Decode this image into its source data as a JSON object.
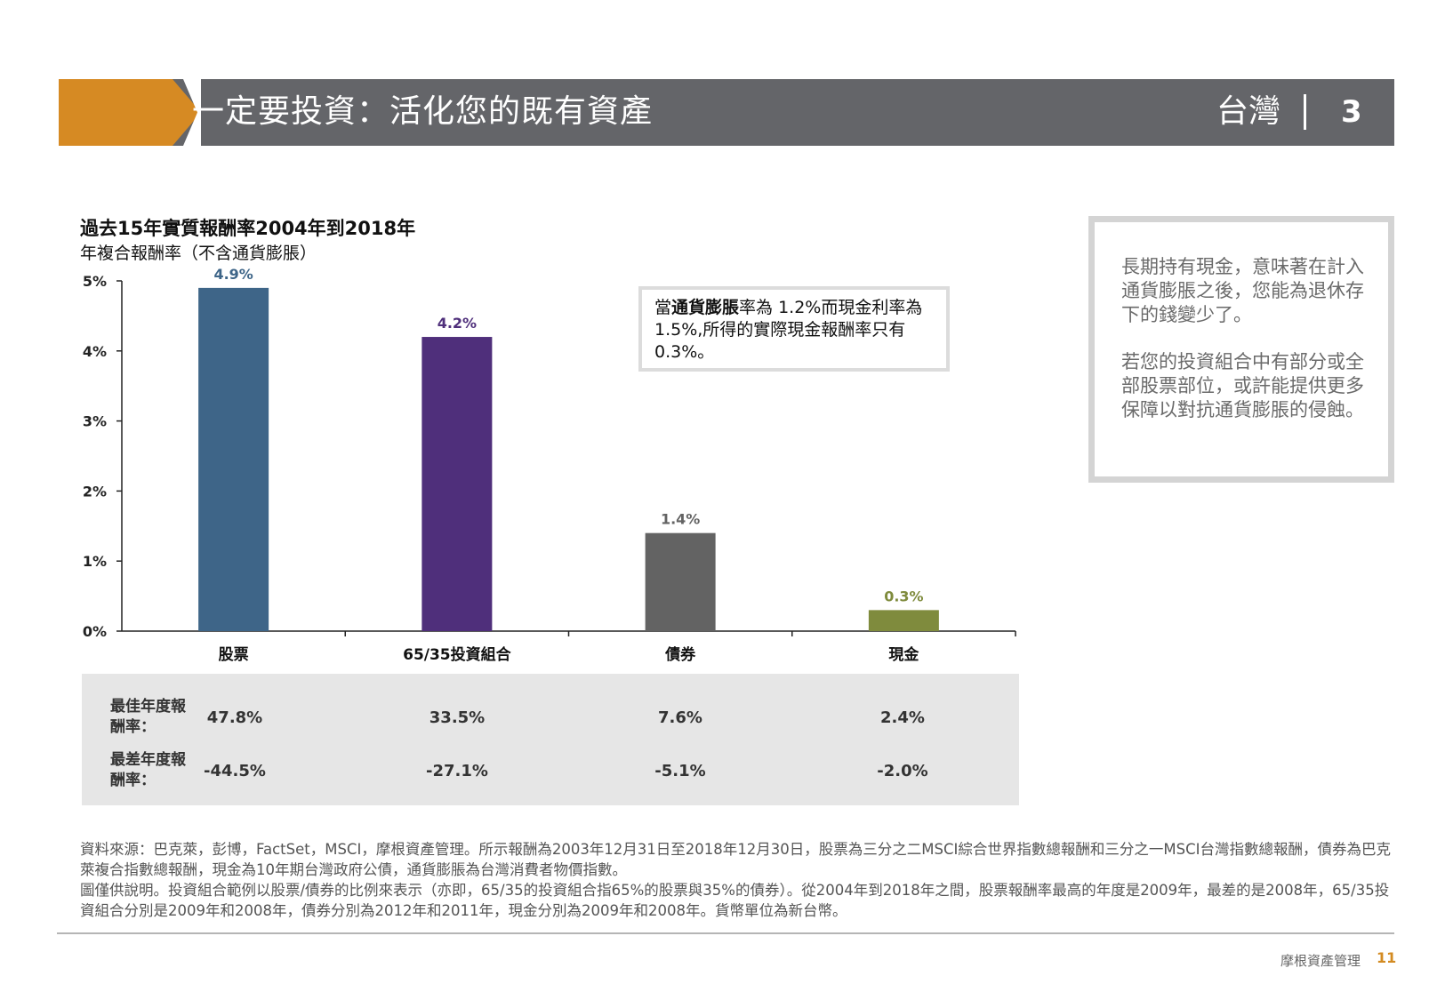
{
  "header": {
    "title": "一定要投資：活化您的既有資產",
    "country": "台灣",
    "page_number": "3",
    "accent_color": "#D68A23",
    "bar_color": "#646569"
  },
  "chart_data": {
    "type": "bar",
    "title": "過去15年實質報酬率2004年到2018年",
    "subtitle": "年複合報酬率（不含通貨膨脹）",
    "categories": [
      "股票",
      "65/35投資組合",
      "債券",
      "現金"
    ],
    "values": [
      4.9,
      4.2,
      1.4,
      0.3
    ],
    "value_labels": [
      "4.9%",
      "4.2%",
      "1.4%",
      "0.3%"
    ],
    "colors": [
      "#3E6588",
      "#4F2F7B",
      "#636363",
      "#7F8B3D"
    ],
    "ylim": [
      0,
      5
    ],
    "yticks": [
      0,
      1,
      2,
      3,
      4,
      5
    ],
    "ytick_labels": [
      "0%",
      "1%",
      "2%",
      "3%",
      "4%",
      "5%"
    ],
    "grid": false,
    "legend": "none"
  },
  "annotation": {
    "part1": "當",
    "bold": "通貨膨脹",
    "part2": "率為 1.2%而現金利率為1.5%,所得的實際現金報酬率只有0.3%。"
  },
  "stats": {
    "best_label": "最佳年度報酬率：",
    "worst_label": "最差年度報酬率：",
    "best": [
      "47.8%",
      "33.5%",
      "7.6%",
      "2.4%"
    ],
    "worst": [
      "-44.5%",
      "-27.1%",
      "-5.1%",
      "-2.0%"
    ]
  },
  "side_note": {
    "para1": "長期持有現金，意味著在計入通貨膨脹之後，您能為退休存下的錢變少了。",
    "para2": "若您的投資組合中有部分或全部股票部位，或許能提供更多保障以對抗通貨膨脹的侵蝕。"
  },
  "footnote": {
    "line1": "資料來源：巴克萊，彭博，FactSet，MSCI，摩根資產管理。所示報酬為2003年12月31日至2018年12月30日，股票為三分之二MSCI綜合世界指數總報酬和三分之一MSCI台灣指數總報酬，債券為巴克萊複合指數總報酬，現金為10年期台灣政府公債，通貨膨脹為台灣消費者物價指數。",
    "line2": "圖僅供說明。投資組合範例以股票/債券的比例來表示（亦即，65/35的投資組合指65%的股票與35%的債券）。從2004年到2018年之間，股票報酬率最高的年度是2009年，最差的是2008年，65/35投資組合分別是2009年和2008年，債券分別為2012年和2011年，現金分別為2009年和2008年。貨幣單位為新台幣。"
  },
  "footer": {
    "brand": "摩根資產管理",
    "page": "11"
  }
}
